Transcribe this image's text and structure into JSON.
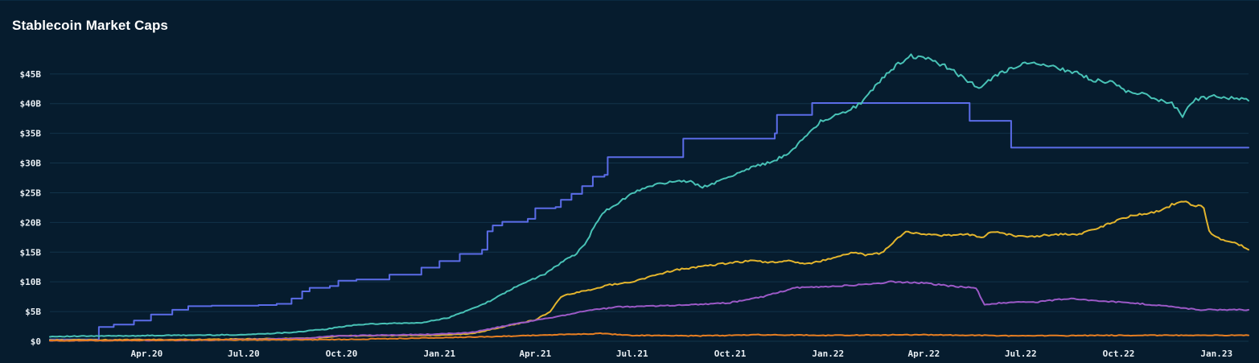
{
  "chart_data": {
    "type": "line",
    "title": "Stablecoin Market Caps",
    "y_tick_labels": [
      "$0",
      "$5B",
      "$10B",
      "$15B",
      "$20B",
      "$25B",
      "$30B",
      "$35B",
      "$40B",
      "$45B"
    ],
    "y_ticks": [
      0,
      5,
      10,
      15,
      20,
      25,
      30,
      35,
      40,
      45
    ],
    "ylim": [
      0,
      48.5
    ],
    "x_tick_labels": [
      "Apr.20",
      "Jul.20",
      "Oct.20",
      "Jan.21",
      "Apr.21",
      "Jul.21",
      "Oct.21",
      "Jan.22",
      "Apr.22",
      "Jul.22",
      "Oct.22",
      "Jan.23"
    ],
    "x_ticks": [
      "2020-04-01",
      "2020-07-01",
      "2020-10-01",
      "2021-01-01",
      "2021-04-01",
      "2021-07-01",
      "2021-10-01",
      "2022-01-01",
      "2022-04-01",
      "2022-07-01",
      "2022-10-01",
      "2023-01-01"
    ],
    "xlim": [
      "2020-01-01",
      "2023-01-31"
    ],
    "grid": "horizontal",
    "colors": {
      "background": "#061c2e",
      "gridline": "#12334a",
      "title": "#ffffff",
      "tick_text": "#e8eef3"
    },
    "series": [
      {
        "color": "#5b6ce8",
        "step": true,
        "points": [
          [
            "2020-01-01",
            0.3
          ],
          [
            "2020-02-15",
            0.3
          ],
          [
            "2020-02-16",
            2.4
          ],
          [
            "2020-03-01",
            2.8
          ],
          [
            "2020-03-20",
            3.5
          ],
          [
            "2020-04-05",
            4.5
          ],
          [
            "2020-04-25",
            5.3
          ],
          [
            "2020-05-10",
            5.9
          ],
          [
            "2020-06-01",
            6.0
          ],
          [
            "2020-07-15",
            6.1
          ],
          [
            "2020-08-01",
            6.3
          ],
          [
            "2020-08-15",
            7.2
          ],
          [
            "2020-08-25",
            8.4
          ],
          [
            "2020-09-01",
            9.0
          ],
          [
            "2020-09-20",
            9.3
          ],
          [
            "2020-09-28",
            10.2
          ],
          [
            "2020-10-15",
            10.4
          ],
          [
            "2020-11-15",
            11.2
          ],
          [
            "2020-12-15",
            12.4
          ],
          [
            "2021-01-01",
            13.5
          ],
          [
            "2021-01-20",
            14.7
          ],
          [
            "2021-02-10",
            15.4
          ],
          [
            "2021-02-15",
            18.5
          ],
          [
            "2021-02-20",
            19.5
          ],
          [
            "2021-03-01",
            20.1
          ],
          [
            "2021-03-25",
            20.6
          ],
          [
            "2021-04-01",
            22.4
          ],
          [
            "2021-04-20",
            22.6
          ],
          [
            "2021-04-25",
            23.8
          ],
          [
            "2021-05-05",
            24.8
          ],
          [
            "2021-05-15",
            26.1
          ],
          [
            "2021-05-25",
            27.7
          ],
          [
            "2021-06-05",
            28.0
          ],
          [
            "2021-06-08",
            31.0
          ],
          [
            "2021-08-15",
            31.0
          ],
          [
            "2021-08-18",
            34.1
          ],
          [
            "2021-11-10",
            34.1
          ],
          [
            "2021-11-12",
            35.0
          ],
          [
            "2021-11-14",
            38.1
          ],
          [
            "2021-12-15",
            38.1
          ],
          [
            "2021-12-17",
            40.1
          ],
          [
            "2022-05-12",
            40.1
          ],
          [
            "2022-05-14",
            37.1
          ],
          [
            "2022-06-20",
            37.1
          ],
          [
            "2022-06-22",
            32.6
          ],
          [
            "2023-01-31",
            32.6
          ]
        ]
      },
      {
        "color": "#48c2b6",
        "step": false,
        "points": [
          [
            "2020-01-01",
            0.8
          ],
          [
            "2020-03-01",
            0.9
          ],
          [
            "2020-05-01",
            1.0
          ],
          [
            "2020-07-01",
            1.1
          ],
          [
            "2020-08-15",
            1.5
          ],
          [
            "2020-09-15",
            2.0
          ],
          [
            "2020-10-15",
            2.8
          ],
          [
            "2020-11-15",
            3.0
          ],
          [
            "2020-12-15",
            3.1
          ],
          [
            "2021-01-10",
            4.0
          ],
          [
            "2021-02-01",
            5.5
          ],
          [
            "2021-02-20",
            7.0
          ],
          [
            "2021-03-10",
            8.8
          ],
          [
            "2021-03-25",
            10.1
          ],
          [
            "2021-04-10",
            11.3
          ],
          [
            "2021-04-25",
            13.2
          ],
          [
            "2021-05-10",
            14.8
          ],
          [
            "2021-05-20",
            17.0
          ],
          [
            "2021-05-28",
            20.0
          ],
          [
            "2021-06-05",
            21.8
          ],
          [
            "2021-06-20",
            23.5
          ],
          [
            "2021-07-01",
            25.0
          ],
          [
            "2021-07-20",
            26.2
          ],
          [
            "2021-08-10",
            27.0
          ],
          [
            "2021-08-25",
            26.8
          ],
          [
            "2021-09-05",
            26.0
          ],
          [
            "2021-09-25",
            27.2
          ],
          [
            "2021-10-10",
            28.5
          ],
          [
            "2021-10-25",
            29.5
          ],
          [
            "2021-11-05",
            30.0
          ],
          [
            "2021-11-25",
            31.5
          ],
          [
            "2021-12-10",
            34.5
          ],
          [
            "2021-12-25",
            37.0
          ],
          [
            "2022-01-15",
            38.5
          ],
          [
            "2022-02-01",
            40.0
          ],
          [
            "2022-02-10",
            42.0
          ],
          [
            "2022-02-25",
            45.0
          ],
          [
            "2022-03-10",
            47.0
          ],
          [
            "2022-03-20",
            48.0
          ],
          [
            "2022-04-05",
            47.5
          ],
          [
            "2022-04-25",
            46.0
          ],
          [
            "2022-05-10",
            44.0
          ],
          [
            "2022-05-25",
            42.5
          ],
          [
            "2022-06-05",
            44.5
          ],
          [
            "2022-06-20",
            45.8
          ],
          [
            "2022-07-05",
            46.8
          ],
          [
            "2022-07-20",
            46.5
          ],
          [
            "2022-08-05",
            46.0
          ],
          [
            "2022-08-25",
            45.0
          ],
          [
            "2022-09-05",
            44.0
          ],
          [
            "2022-09-25",
            43.5
          ],
          [
            "2022-10-10",
            42.0
          ],
          [
            "2022-10-25",
            41.5
          ],
          [
            "2022-11-10",
            40.5
          ],
          [
            "2022-11-20",
            40.0
          ],
          [
            "2022-11-30",
            38.0
          ],
          [
            "2022-12-10",
            40.5
          ],
          [
            "2022-12-20",
            41.0
          ],
          [
            "2023-01-01",
            41.3
          ],
          [
            "2023-01-10",
            40.8
          ],
          [
            "2023-01-20",
            41.0
          ],
          [
            "2023-01-31",
            40.5
          ]
        ]
      },
      {
        "color": "#e2b42d",
        "step": false,
        "points": [
          [
            "2020-01-01",
            0.2
          ],
          [
            "2020-06-01",
            0.3
          ],
          [
            "2020-09-01",
            0.5
          ],
          [
            "2020-10-01",
            0.9
          ],
          [
            "2020-12-01",
            1.0
          ],
          [
            "2021-01-01",
            1.0
          ],
          [
            "2021-02-01",
            1.3
          ],
          [
            "2021-03-01",
            2.4
          ],
          [
            "2021-04-01",
            3.6
          ],
          [
            "2021-04-15",
            5.0
          ],
          [
            "2021-04-25",
            7.5
          ],
          [
            "2021-05-10",
            8.2
          ],
          [
            "2021-05-25",
            8.8
          ],
          [
            "2021-06-10",
            9.5
          ],
          [
            "2021-07-01",
            10.0
          ],
          [
            "2021-07-20",
            11.0
          ],
          [
            "2021-08-10",
            12.0
          ],
          [
            "2021-09-01",
            12.5
          ],
          [
            "2021-10-01",
            13.2
          ],
          [
            "2021-10-20",
            13.5
          ],
          [
            "2021-11-10",
            13.3
          ],
          [
            "2021-11-25",
            13.5
          ],
          [
            "2021-12-10",
            13.0
          ],
          [
            "2021-12-25",
            13.5
          ],
          [
            "2022-01-15",
            14.5
          ],
          [
            "2022-01-25",
            15.0
          ],
          [
            "2022-02-05",
            14.5
          ],
          [
            "2022-02-20",
            14.8
          ],
          [
            "2022-03-05",
            17.0
          ],
          [
            "2022-03-15",
            18.4
          ],
          [
            "2022-04-01",
            18.0
          ],
          [
            "2022-04-20",
            17.8
          ],
          [
            "2022-05-10",
            18.0
          ],
          [
            "2022-05-25",
            17.5
          ],
          [
            "2022-06-05",
            18.5
          ],
          [
            "2022-06-20",
            18.0
          ],
          [
            "2022-07-05",
            17.5
          ],
          [
            "2022-08-01",
            18.0
          ],
          [
            "2022-08-25",
            18.0
          ],
          [
            "2022-09-10",
            19.0
          ],
          [
            "2022-09-25",
            20.0
          ],
          [
            "2022-10-10",
            21.0
          ],
          [
            "2022-10-25",
            21.5
          ],
          [
            "2022-11-10",
            22.0
          ],
          [
            "2022-11-20",
            23.0
          ],
          [
            "2022-12-01",
            23.5
          ],
          [
            "2022-12-10",
            23.0
          ],
          [
            "2022-12-20",
            22.5
          ],
          [
            "2022-12-25",
            18.5
          ],
          [
            "2023-01-05",
            17.0
          ],
          [
            "2023-01-20",
            16.5
          ],
          [
            "2023-01-31",
            15.4
          ]
        ]
      },
      {
        "color": "#9b59c6",
        "step": false,
        "points": [
          [
            "2020-01-01",
            0.1
          ],
          [
            "2020-06-01",
            0.2
          ],
          [
            "2020-09-01",
            0.5
          ],
          [
            "2020-09-20",
            0.9
          ],
          [
            "2020-11-01",
            1.0
          ],
          [
            "2021-01-01",
            1.2
          ],
          [
            "2021-02-01",
            1.5
          ],
          [
            "2021-03-01",
            2.5
          ],
          [
            "2021-04-01",
            3.5
          ],
          [
            "2021-05-01",
            4.5
          ],
          [
            "2021-05-20",
            5.2
          ],
          [
            "2021-06-20",
            5.8
          ],
          [
            "2021-08-01",
            6.0
          ],
          [
            "2021-09-01",
            6.2
          ],
          [
            "2021-10-01",
            6.5
          ],
          [
            "2021-11-01",
            7.5
          ],
          [
            "2021-12-01",
            9.0
          ],
          [
            "2022-01-01",
            9.2
          ],
          [
            "2022-02-01",
            9.5
          ],
          [
            "2022-03-01",
            10.0
          ],
          [
            "2022-04-01",
            9.8
          ],
          [
            "2022-05-01",
            9.2
          ],
          [
            "2022-05-20",
            9.0
          ],
          [
            "2022-05-28",
            6.2
          ],
          [
            "2022-06-15",
            6.5
          ],
          [
            "2022-07-15",
            6.6
          ],
          [
            "2022-08-15",
            7.2
          ],
          [
            "2022-09-10",
            6.8
          ],
          [
            "2022-10-10",
            6.5
          ],
          [
            "2022-11-10",
            6.0
          ],
          [
            "2022-12-15",
            5.3
          ],
          [
            "2023-01-31",
            5.3
          ]
        ]
      },
      {
        "color": "#e67e22",
        "step": false,
        "points": [
          [
            "2020-01-01",
            0.1
          ],
          [
            "2020-10-01",
            0.3
          ],
          [
            "2021-02-01",
            0.7
          ],
          [
            "2021-04-01",
            1.0
          ],
          [
            "2021-06-01",
            1.3
          ],
          [
            "2021-07-01",
            1.0
          ],
          [
            "2021-09-01",
            0.9
          ],
          [
            "2021-11-01",
            1.1
          ],
          [
            "2022-01-01",
            1.0
          ],
          [
            "2022-04-01",
            1.1
          ],
          [
            "2022-07-01",
            0.9
          ],
          [
            "2022-10-01",
            1.0
          ],
          [
            "2023-01-31",
            1.0
          ]
        ]
      }
    ]
  }
}
